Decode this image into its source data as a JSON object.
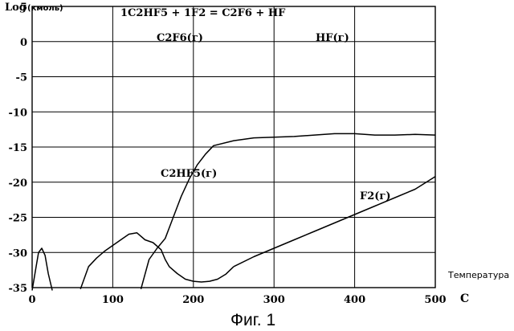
{
  "chart_data": {
    "type": "line",
    "title": "1C2HF5 + 1F2 = C2F6 + HF",
    "ylabel_main": "Log",
    "ylabel_unit": "(кмоль)",
    "xlabel_word": "Температура",
    "xlabel_unit": "C",
    "caption": "Фиг. 1",
    "xlim": [
      0,
      500
    ],
    "ylim": [
      -35,
      5
    ],
    "x_ticks": [
      "0",
      "100",
      "200",
      "300",
      "400",
      "500"
    ],
    "y_ticks": [
      "5",
      "0",
      "-5",
      "-10",
      "-15",
      "-20",
      "-25",
      "-30",
      "-35"
    ],
    "series": [
      {
        "name": "C2F6(г)",
        "label": "C2F6(г)",
        "points": [
          [
            0,
            -35.4
          ],
          [
            5,
            -32
          ],
          [
            8,
            -30
          ],
          [
            12,
            -29.4
          ],
          [
            16,
            -30.4
          ],
          [
            20,
            -33
          ],
          [
            25,
            -35.4
          ]
        ]
      },
      {
        "name": "HF(г)",
        "label": "HF(г)",
        "points": [
          [
            60,
            -35.2
          ],
          [
            70,
            -32
          ],
          [
            80,
            -30.8
          ],
          [
            90,
            -29.8
          ],
          [
            100,
            -29
          ],
          [
            110,
            -28.2
          ],
          [
            120,
            -27.4
          ],
          [
            130,
            -27.2
          ],
          [
            140,
            -28.2
          ],
          [
            150,
            -28.6
          ],
          [
            160,
            -29.6
          ],
          [
            165,
            -31
          ],
          [
            170,
            -32
          ],
          [
            180,
            -33
          ],
          [
            190,
            -33.8
          ],
          [
            200,
            -34.1
          ],
          [
            210,
            -34.2
          ],
          [
            220,
            -34.1
          ],
          [
            230,
            -33.8
          ],
          [
            240,
            -33.1
          ],
          [
            250,
            -32
          ]
        ]
      },
      {
        "name": "C2HF5(г)",
        "label": "C2HF5(г)",
        "points": [
          [
            135,
            -35.2
          ],
          [
            145,
            -31
          ],
          [
            155,
            -29.4
          ],
          [
            165,
            -28
          ],
          [
            175,
            -25
          ],
          [
            185,
            -22
          ],
          [
            195,
            -19.5
          ],
          [
            205,
            -17.5
          ],
          [
            215,
            -16
          ],
          [
            225,
            -14.8
          ],
          [
            250,
            -14.1
          ],
          [
            275,
            -13.7
          ],
          [
            300,
            -13.6
          ],
          [
            325,
            -13.5
          ],
          [
            350,
            -13.3
          ],
          [
            375,
            -13.1
          ],
          [
            400,
            -13.1
          ],
          [
            425,
            -13.3
          ],
          [
            450,
            -13.3
          ],
          [
            475,
            -13.2
          ],
          [
            500,
            -13.3
          ]
        ]
      },
      {
        "name": "F2(г)",
        "label": "F2(г)",
        "points": [
          [
            250,
            -32
          ],
          [
            275,
            -30.6
          ],
          [
            300,
            -29.4
          ],
          [
            325,
            -28.2
          ],
          [
            350,
            -27
          ],
          [
            375,
            -25.8
          ],
          [
            400,
            -24.6
          ],
          [
            425,
            -23.4
          ],
          [
            450,
            -22.2
          ],
          [
            475,
            -21
          ],
          [
            500,
            -19.2
          ]
        ]
      }
    ],
    "grid": true
  }
}
